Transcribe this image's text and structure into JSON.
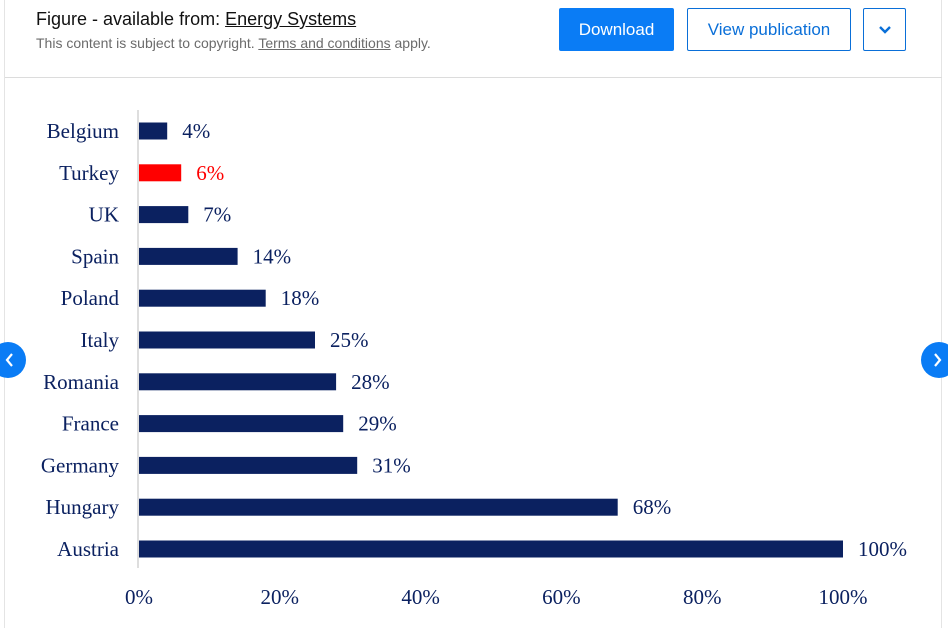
{
  "header": {
    "figure_prefix": "Figure - available from: ",
    "source_link": "Energy Systems",
    "copyright_text": "This content is subject to copyright. ",
    "terms_link": "Terms and conditions",
    "terms_suffix": " apply.",
    "download_label": "Download",
    "view_label": "View publication",
    "more_icon": "chevron-down-icon"
  },
  "navigation": {
    "prev_icon": "chevron-left-icon",
    "next_icon": "chevron-right-icon"
  },
  "colors": {
    "bar": "#0b2160",
    "highlight": "#ff0000",
    "button_primary": "#0a7cf5"
  },
  "chart_data": {
    "type": "bar",
    "orientation": "horizontal",
    "title": "",
    "xlabel": "",
    "ylabel": "",
    "xlim": [
      0,
      100
    ],
    "categories": [
      "Belgium",
      "Turkey",
      "UK",
      "Spain",
      "Poland",
      "Italy",
      "Romania",
      "France",
      "Germany",
      "Hungary",
      "Austria"
    ],
    "values": [
      4,
      6,
      7,
      14,
      18,
      25,
      28,
      29,
      31,
      68,
      100
    ],
    "value_labels": [
      "4%",
      "6%",
      "7%",
      "14%",
      "18%",
      "25%",
      "28%",
      "29%",
      "31%",
      "68%",
      "100%"
    ],
    "highlighted_category": "Turkey",
    "x_ticks": [
      "0%",
      "20%",
      "40%",
      "60%",
      "80%",
      "100%"
    ],
    "x_tick_values": [
      0,
      20,
      40,
      60,
      80,
      100
    ],
    "grid": false,
    "legend": "none"
  }
}
